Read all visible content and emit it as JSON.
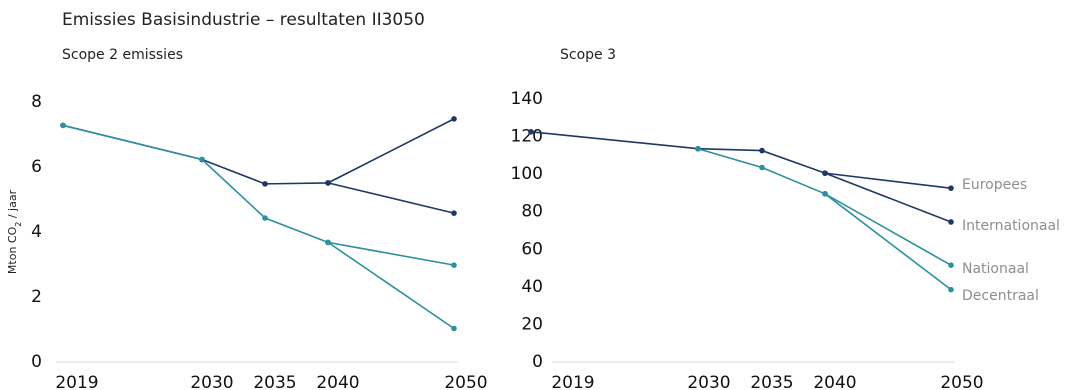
{
  "title": "Emissies Basisindustrie – resultaten II3050",
  "colors": {
    "dark": "#1f3864",
    "teal": "#2e8f9f"
  },
  "chart_data": [
    {
      "type": "line",
      "subtitle": "Scope 2 emissies",
      "ylabel_main": "Mton CO",
      "ylabel_sub": "2",
      "ylabel_rest": " / jaar",
      "x": [
        2019,
        2030,
        2035,
        2040,
        2050
      ],
      "ylim": [
        0,
        8
      ],
      "yticks": [
        0,
        2,
        4,
        6,
        8
      ],
      "series": [
        {
          "color": "#1f3864",
          "points": [
            [
              2019,
              7.25
            ],
            [
              2030,
              6.2
            ],
            [
              2035,
              5.45
            ],
            [
              2040,
              5.48
            ],
            [
              2050,
              7.45
            ]
          ]
        },
        {
          "color": "#1f3864",
          "points": [
            [
              2040,
              5.48
            ],
            [
              2050,
              4.55
            ]
          ]
        },
        {
          "color": "#2e8f9f",
          "points": [
            [
              2019,
              7.25
            ],
            [
              2030,
              6.2
            ],
            [
              2035,
              4.4
            ],
            [
              2040,
              3.65
            ],
            [
              2050,
              2.95
            ]
          ]
        },
        {
          "color": "#2e8f9f",
          "points": [
            [
              2040,
              3.65
            ],
            [
              2050,
              1.0
            ]
          ]
        }
      ]
    },
    {
      "type": "line",
      "subtitle": "Scope 3",
      "x": [
        2019,
        2030,
        2035,
        2040,
        2050
      ],
      "ylim": [
        0,
        140
      ],
      "yticks": [
        0,
        20,
        40,
        60,
        80,
        100,
        120,
        140
      ],
      "series": [
        {
          "name": "Europees",
          "color": "#1f3864",
          "points": [
            [
              2019,
              122
            ],
            [
              2030,
              113
            ],
            [
              2035,
              112
            ],
            [
              2040,
              100
            ],
            [
              2050,
              92
            ]
          ]
        },
        {
          "name": "Internationaal",
          "color": "#1f3864",
          "points": [
            [
              2040,
              100
            ],
            [
              2050,
              74
            ]
          ]
        },
        {
          "name": "Nationaal",
          "color": "#2e8f9f",
          "points": [
            [
              2030,
              113
            ],
            [
              2035,
              103
            ],
            [
              2040,
              89
            ],
            [
              2050,
              51
            ]
          ]
        },
        {
          "name": "Decentraal",
          "color": "#2e8f9f",
          "points": [
            [
              2040,
              89
            ],
            [
              2050,
              38
            ]
          ]
        }
      ]
    }
  ]
}
